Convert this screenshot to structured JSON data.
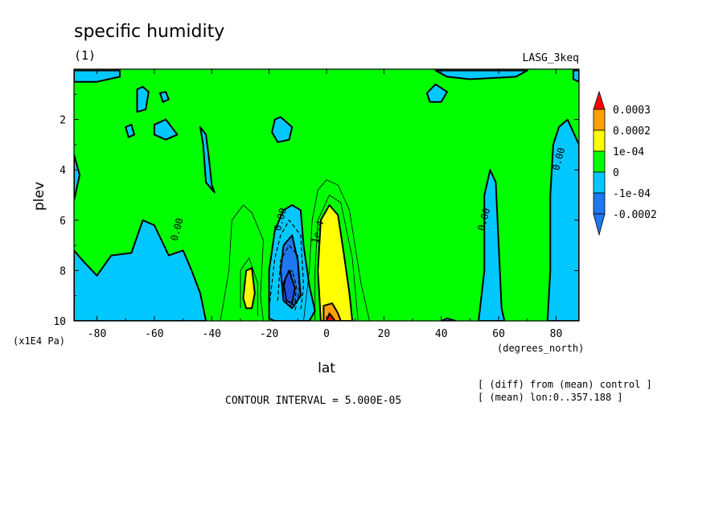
{
  "colors": {
    "level_m0002": "#1e78f0",
    "level_m0001": "#00c8ff",
    "level_0": "#00ff00",
    "level_p0001": "#ffff00",
    "level_p0002": "#ffa000",
    "level_p0003": "#ff0000",
    "dark_blue": "#2050e0"
  },
  "chart_data": {
    "type": "heatmap",
    "title": "specific humidity",
    "subtitle": "(1)",
    "dataset_label": "LASG_3keq",
    "xlabel": "lat",
    "x_units": "(degrees_north)",
    "ylabel": "plev",
    "y_units": "(x1E4 Pa)",
    "xlim": [
      -88,
      88
    ],
    "ylim": [
      10,
      0
    ],
    "x_ticks": [
      -80,
      -60,
      -40,
      -20,
      0,
      20,
      40,
      60,
      80
    ],
    "x_tick_labels": [
      "-80",
      "-60",
      "-40",
      "-20",
      "0",
      "20",
      "40",
      "60",
      "80"
    ],
    "y_ticks": [
      2,
      4,
      6,
      8,
      10
    ],
    "y_tick_labels": [
      "2",
      "4",
      "6",
      "8",
      "10"
    ],
    "contour_interval_text": "CONTOUR INTERVAL = 5.000E-05",
    "notes": [
      "[ (diff) from (mean) control ]",
      "[ (mean) lon:0..357.188 ]"
    ],
    "colorbar": {
      "labels": [
        "0.0003",
        "0.0002",
        "1e-04",
        "0",
        "-1e-04",
        "-0.0002"
      ],
      "levels": [
        0.0003,
        0.0002,
        0.0001,
        0,
        -0.0001,
        -0.0002
      ]
    },
    "contour_labels": [
      {
        "text": "0.00",
        "lat": -51,
        "plev": 6.4
      },
      {
        "text": "0.00",
        "lat": -15,
        "plev": 6.0
      },
      {
        "text": "1e-4",
        "lat": -2,
        "plev": 6.5
      },
      {
        "text": "0.00",
        "lat": 56,
        "plev": 6.0
      },
      {
        "text": "0.00",
        "lat": 82,
        "plev": 3.6
      }
    ],
    "regions": [
      {
        "level": -0.0001,
        "color_key": "level_m0001",
        "points": [
          [
            -88,
            10
          ],
          [
            -88,
            7.2
          ],
          [
            -85,
            7.6
          ],
          [
            -80,
            8.2
          ],
          [
            -75,
            7.4
          ],
          [
            -68,
            7.3
          ],
          [
            -64,
            6.0
          ],
          [
            -60,
            6.2
          ],
          [
            -55,
            7.4
          ],
          [
            -50,
            7.2
          ],
          [
            -47,
            8.0
          ],
          [
            -44,
            8.9
          ],
          [
            -42,
            10
          ]
        ]
      },
      {
        "level": -0.0001,
        "color_key": "level_m0001",
        "points": [
          [
            -88,
            0.05
          ],
          [
            -72,
            0.05
          ],
          [
            -72,
            0.3
          ],
          [
            -80,
            0.5
          ],
          [
            -88,
            0.5
          ]
        ]
      },
      {
        "level": -0.0001,
        "color_key": "level_m0001",
        "points": [
          [
            -88,
            3.4
          ],
          [
            -86,
            4.2
          ],
          [
            -88,
            5.2
          ]
        ]
      },
      {
        "level": -0.0001,
        "color_key": "level_m0001",
        "points": [
          [
            -66,
            0.8
          ],
          [
            -64,
            0.7
          ],
          [
            -62,
            0.9
          ],
          [
            -63,
            1.6
          ],
          [
            -66,
            1.7
          ]
        ]
      },
      {
        "level": -0.0001,
        "color_key": "level_m0001",
        "points": [
          [
            -58,
            0.95
          ],
          [
            -56,
            0.9
          ],
          [
            -55,
            1.2
          ],
          [
            -57,
            1.3
          ]
        ]
      },
      {
        "level": -0.0001,
        "color_key": "level_m0001",
        "points": [
          [
            -70,
            2.3
          ],
          [
            -68,
            2.2
          ],
          [
            -67,
            2.6
          ],
          [
            -69,
            2.7
          ]
        ]
      },
      {
        "level": -0.0001,
        "color_key": "level_m0001",
        "points": [
          [
            -60,
            2.2
          ],
          [
            -56,
            2.0
          ],
          [
            -52,
            2.6
          ],
          [
            -56,
            2.8
          ],
          [
            -60,
            2.6
          ]
        ]
      },
      {
        "level": -0.0001,
        "color_key": "level_m0001",
        "points": [
          [
            -44,
            2.3
          ],
          [
            -42,
            2.6
          ],
          [
            -41,
            3.5
          ],
          [
            -40,
            4.6
          ],
          [
            -39,
            4.9
          ],
          [
            -42,
            4.5
          ],
          [
            -43,
            3.0
          ]
        ]
      },
      {
        "level": -0.0001,
        "color_key": "level_m0001",
        "points": [
          [
            -18,
            2.0
          ],
          [
            -16,
            1.9
          ],
          [
            -12,
            2.3
          ],
          [
            -13,
            2.8
          ],
          [
            -17,
            2.9
          ],
          [
            -19,
            2.5
          ]
        ]
      },
      {
        "level": -0.0001,
        "color_key": "level_m0001",
        "points": [
          [
            -20,
            9.9
          ],
          [
            -20,
            8.0
          ],
          [
            -18,
            6.4
          ],
          [
            -15,
            5.6
          ],
          [
            -12,
            5.4
          ],
          [
            -9,
            5.6
          ],
          [
            -8,
            7.0
          ],
          [
            -6,
            8.6
          ],
          [
            -4,
            9.6
          ],
          [
            -6,
            10
          ],
          [
            -18,
            10
          ]
        ]
      },
      {
        "level": -0.0002,
        "color_key": "level_m0002",
        "points": [
          [
            -16,
            8.0
          ],
          [
            -15,
            7.0
          ],
          [
            -12,
            6.6
          ],
          [
            -10,
            7.6
          ],
          [
            -9,
            9.0
          ],
          [
            -12,
            9.5
          ],
          [
            -15,
            9.2
          ]
        ]
      },
      {
        "level": -0.00025,
        "color_key": "dark_blue",
        "points": [
          [
            -15,
            8.5
          ],
          [
            -13,
            8.0
          ],
          [
            -11,
            8.7
          ],
          [
            -12,
            9.3
          ],
          [
            -14,
            9.2
          ]
        ]
      },
      {
        "level": -0.0001,
        "color_key": "level_m0001",
        "points": [
          [
            35,
            0.95
          ],
          [
            38,
            0.6
          ],
          [
            42,
            0.9
          ],
          [
            40,
            1.3
          ],
          [
            36,
            1.3
          ]
        ]
      },
      {
        "level": -0.0001,
        "color_key": "level_m0001",
        "points": [
          [
            38,
            0.05
          ],
          [
            70,
            0.05
          ],
          [
            66,
            0.3
          ],
          [
            50,
            0.4
          ],
          [
            42,
            0.3
          ]
        ]
      },
      {
        "level": -0.0001,
        "color_key": "level_m0001",
        "points": [
          [
            86,
            0.05
          ],
          [
            88,
            0.05
          ],
          [
            88,
            0.5
          ],
          [
            86,
            0.4
          ]
        ]
      },
      {
        "level": -0.0001,
        "color_key": "level_m0001",
        "points": [
          [
            53,
            10
          ],
          [
            55,
            8.0
          ],
          [
            55,
            5.0
          ],
          [
            57,
            4.0
          ],
          [
            59,
            4.5
          ],
          [
            60,
            7.0
          ],
          [
            61,
            9.5
          ],
          [
            62,
            10
          ]
        ]
      },
      {
        "level": -0.0001,
        "color_key": "level_m0001",
        "points": [
          [
            77,
            10
          ],
          [
            78,
            8.0
          ],
          [
            78,
            5.0
          ],
          [
            79,
            3.0
          ],
          [
            81,
            2.3
          ],
          [
            84,
            2.0
          ],
          [
            88,
            3.0
          ],
          [
            88,
            10
          ]
        ]
      },
      {
        "level": -0.0001,
        "color_key": "level_m0001",
        "points": [
          [
            40,
            10
          ],
          [
            42,
            9.9
          ],
          [
            45,
            10
          ]
        ]
      },
      {
        "level": 0.0001,
        "color_key": "level_p0001",
        "points": [
          [
            -2,
            10
          ],
          [
            -3,
            8.0
          ],
          [
            -2,
            6.0
          ],
          [
            1,
            5.4
          ],
          [
            4,
            5.8
          ],
          [
            6,
            7.3
          ],
          [
            8,
            8.9
          ],
          [
            9,
            10
          ]
        ]
      },
      {
        "level": 0.0002,
        "color_key": "level_p0002",
        "points": [
          [
            -1,
            10
          ],
          [
            -1,
            9.4
          ],
          [
            2,
            9.3
          ],
          [
            4,
            9.7
          ],
          [
            5,
            10
          ]
        ]
      },
      {
        "level": 0.0003,
        "color_key": "level_p0003",
        "points": [
          [
            0,
            10
          ],
          [
            1,
            9.7
          ],
          [
            3,
            10
          ]
        ]
      },
      {
        "level": 0.0001,
        "color_key": "level_p0001",
        "points": [
          [
            -29,
            9.1
          ],
          [
            -28,
            8.0
          ],
          [
            -26,
            7.9
          ],
          [
            -25,
            8.9
          ],
          [
            -26,
            9.5
          ],
          [
            -28,
            9.5
          ]
        ]
      }
    ],
    "thin_contours": [
      {
        "level": 5e-05,
        "points": [
          [
            -37,
            10
          ],
          [
            -34,
            8.0
          ],
          [
            -33,
            6.0
          ],
          [
            -29,
            5.4
          ],
          [
            -26,
            5.7
          ],
          [
            -22,
            6.8
          ],
          [
            -23,
            9.0
          ],
          [
            -22,
            10
          ]
        ]
      },
      {
        "level": 5e-05,
        "points": [
          [
            -8,
            10
          ],
          [
            -6,
            8.0
          ],
          [
            -5,
            6.0
          ],
          [
            -3,
            4.8
          ],
          [
            0,
            4.4
          ],
          [
            4,
            4.6
          ],
          [
            8,
            5.6
          ],
          [
            12,
            8.5
          ],
          [
            15,
            10
          ]
        ]
      },
      {
        "level": 5e-05,
        "points": [
          [
            -30,
            9.5
          ],
          [
            -30,
            8.0
          ],
          [
            -27,
            7.5
          ],
          [
            -24,
            8.5
          ],
          [
            -24,
            9.8
          ]
        ]
      },
      {
        "level": 5e-05,
        "points": [
          [
            -4,
            10
          ],
          [
            -4,
            8.0
          ],
          [
            -3,
            6.0
          ],
          [
            1,
            5.0
          ],
          [
            5,
            5.3
          ],
          [
            9,
            7.5
          ],
          [
            11,
            10
          ]
        ]
      },
      {
        "level": -5e-05,
        "points": [
          [
            -20,
            9.5
          ],
          [
            -18,
            7.5
          ],
          [
            -16,
            6.6
          ],
          [
            -13,
            6.0
          ],
          [
            -9,
            6.6
          ],
          [
            -8,
            8.6
          ],
          [
            -9,
            9.6
          ]
        ]
      },
      {
        "level": -5e-05,
        "points": [
          [
            -17,
            9.2
          ],
          [
            -16,
            7.6
          ],
          [
            -13,
            7.0
          ],
          [
            -10,
            7.4
          ],
          [
            -9.5,
            8.8
          ],
          [
            -11,
            9.6
          ]
        ]
      },
      {
        "level": -0.0002,
        "points": [
          [
            -15,
            8.8
          ],
          [
            -14,
            8.2
          ],
          [
            -12,
            8.0
          ],
          [
            -10.5,
            8.6
          ],
          [
            -11,
            9.3
          ],
          [
            -13,
            9.4
          ]
        ]
      }
    ]
  }
}
